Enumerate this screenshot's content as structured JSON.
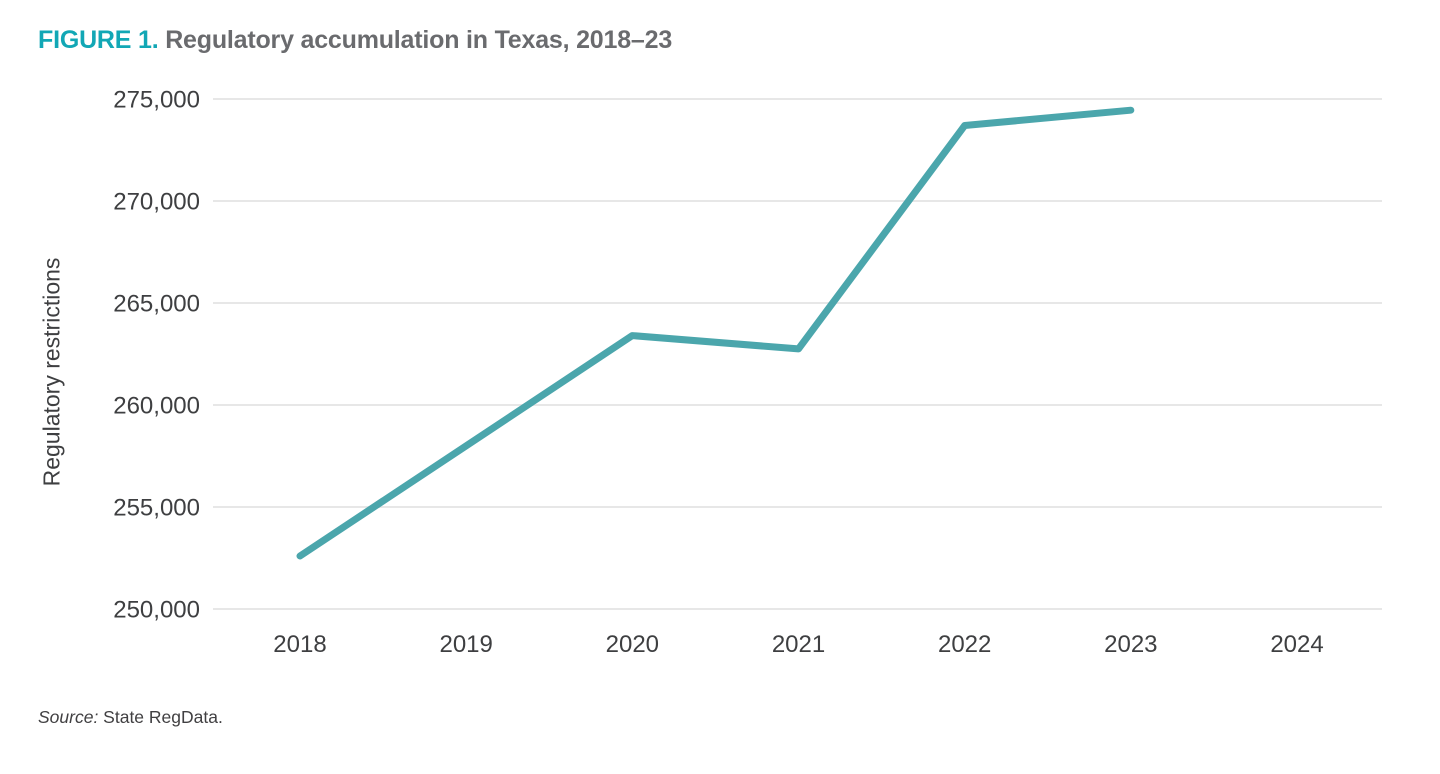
{
  "header": {
    "figure_label": "FIGURE 1.",
    "title": " Regulatory accumulation in Texas, 2018–23"
  },
  "colors": {
    "figure_label_accent": "#12a7b5",
    "title_gray": "#6a6b6e",
    "line_teal": "#4ba6ac",
    "gridline": "#e7e7e7",
    "tick_text": "#3e3f41"
  },
  "chart_data": {
    "type": "line",
    "title": "Regulatory accumulation in Texas, 2018–23",
    "xlabel": "",
    "ylabel": "Regulatory restrictions",
    "xlim": [
      2018,
      2024
    ],
    "ylim": [
      250000,
      275000
    ],
    "grid": "horizontal-only",
    "legend_position": "none",
    "x_ticks": [
      {
        "value": 2018,
        "label": "2018"
      },
      {
        "value": 2019,
        "label": "2019"
      },
      {
        "value": 2020,
        "label": "2020"
      },
      {
        "value": 2021,
        "label": "2021"
      },
      {
        "value": 2022,
        "label": "2022"
      },
      {
        "value": 2023,
        "label": "2023"
      },
      {
        "value": 2024,
        "label": "2024"
      }
    ],
    "y_ticks": [
      {
        "value": 275000,
        "label": "275,000"
      },
      {
        "value": 270000,
        "label": "270,000"
      },
      {
        "value": 265000,
        "label": "265,000"
      },
      {
        "value": 260000,
        "label": "260,000"
      },
      {
        "value": 255000,
        "label": "255,000"
      },
      {
        "value": 250000,
        "label": "250,000"
      }
    ],
    "series": [
      {
        "name": "Regulatory restrictions",
        "color": "#4ba6ac",
        "points": [
          {
            "x": 2018,
            "y": 252600
          },
          {
            "x": 2019,
            "y": 258000
          },
          {
            "x": 2020,
            "y": 263400
          },
          {
            "x": 2021,
            "y": 262750
          },
          {
            "x": 2022,
            "y": 273700
          },
          {
            "x": 2023,
            "y": 274450
          }
        ]
      }
    ]
  },
  "source": {
    "prefix": "Source:",
    "text": " State RegData."
  }
}
